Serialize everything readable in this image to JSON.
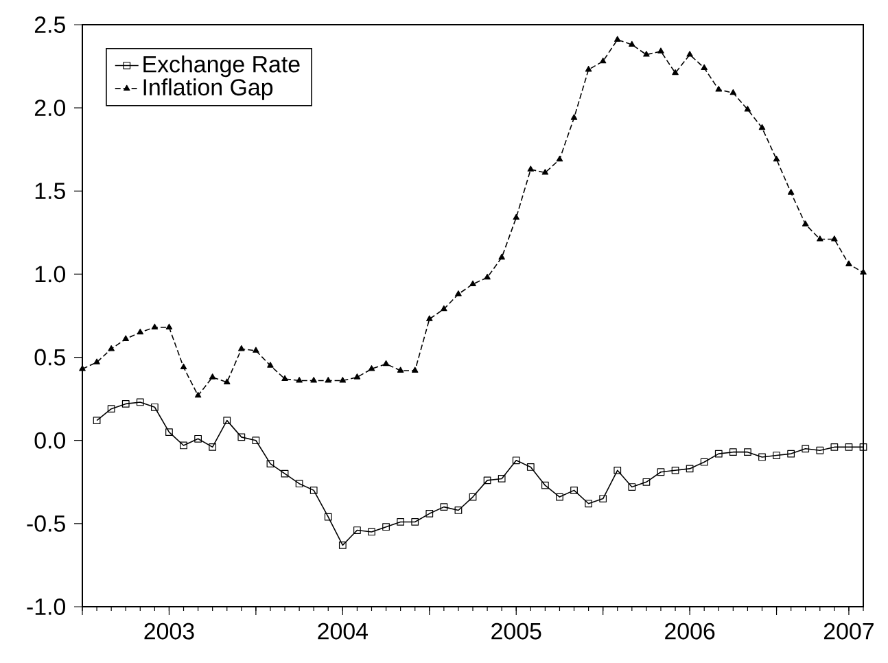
{
  "chart_data": {
    "type": "line",
    "x": [
      "2003-01",
      "2003-02",
      "2003-03",
      "2003-04",
      "2003-05",
      "2003-06",
      "2003-07",
      "2003-08",
      "2003-09",
      "2003-10",
      "2003-11",
      "2003-12",
      "2004-01",
      "2004-02",
      "2004-03",
      "2004-04",
      "2004-05",
      "2004-06",
      "2004-07",
      "2004-08",
      "2004-09",
      "2004-10",
      "2004-11",
      "2004-12",
      "2005-01",
      "2005-02",
      "2005-03",
      "2005-04",
      "2005-05",
      "2005-06",
      "2005-07",
      "2005-08",
      "2005-09",
      "2005-10",
      "2005-11",
      "2005-12",
      "2006-01",
      "2006-02",
      "2006-03",
      "2006-04",
      "2006-05",
      "2006-06",
      "2006-07",
      "2006-08",
      "2006-09",
      "2006-10",
      "2006-11",
      "2006-12",
      "2007-01",
      "2007-02",
      "2007-03",
      "2007-04",
      "2007-05",
      "2007-06",
      "2007-07"
    ],
    "series": [
      {
        "name": "Exchange Rate",
        "color": "#000000",
        "marker": "square",
        "line_style": "solid",
        "values": [
          null,
          0.12,
          0.19,
          0.22,
          0.23,
          0.2,
          0.05,
          -0.03,
          0.01,
          -0.04,
          0.12,
          0.02,
          0.0,
          -0.14,
          -0.2,
          -0.26,
          -0.3,
          -0.46,
          -0.63,
          -0.54,
          -0.55,
          -0.52,
          -0.49,
          -0.49,
          -0.44,
          -0.4,
          -0.42,
          -0.34,
          -0.24,
          -0.23,
          -0.12,
          -0.16,
          -0.27,
          -0.34,
          -0.3,
          -0.38,
          -0.35,
          -0.18,
          -0.28,
          -0.25,
          -0.19,
          -0.18,
          -0.17,
          -0.13,
          -0.08,
          -0.07,
          -0.07,
          -0.1,
          -0.09,
          -0.08,
          -0.05,
          -0.06,
          -0.04,
          -0.04,
          -0.04
        ]
      },
      {
        "name": "Inflation Gap",
        "color": "#000000",
        "marker": "triangle",
        "line_style": "dashed",
        "values": [
          0.43,
          0.47,
          0.55,
          0.61,
          0.65,
          0.68,
          0.68,
          0.44,
          0.27,
          0.38,
          0.35,
          0.55,
          0.54,
          0.45,
          0.37,
          0.36,
          0.36,
          0.36,
          0.36,
          0.38,
          0.43,
          0.46,
          0.42,
          0.42,
          0.73,
          0.79,
          0.88,
          0.94,
          0.98,
          1.1,
          1.34,
          1.63,
          1.61,
          1.69,
          1.94,
          2.23,
          2.28,
          2.41,
          2.38,
          2.32,
          2.34,
          2.21,
          2.32,
          2.24,
          2.11,
          2.09,
          1.99,
          1.88,
          1.69,
          1.49,
          1.3,
          1.21,
          1.21,
          1.06,
          1.01
        ]
      }
    ],
    "xlim": [
      "2003-01",
      "2007-07"
    ],
    "xticks": [
      {
        "value": "2003-01",
        "label": null
      },
      {
        "value": "2003-07",
        "label": "2003"
      },
      {
        "value": "2004-01",
        "label": null
      },
      {
        "value": "2004-07",
        "label": "2004"
      },
      {
        "value": "2005-01",
        "label": null
      },
      {
        "value": "2005-07",
        "label": "2005"
      },
      {
        "value": "2006-01",
        "label": null
      },
      {
        "value": "2006-07",
        "label": "2006"
      },
      {
        "value": "2007-01",
        "label": null
      },
      {
        "value": "2007-06",
        "label": "2007"
      }
    ],
    "ylim": [
      -1.0,
      2.5
    ],
    "yticks": [
      {
        "value": -1.0,
        "label": "-1.0"
      },
      {
        "value": -0.5,
        "label": "-0.5"
      },
      {
        "value": 0,
        "label": "0.0"
      },
      {
        "value": 0.5,
        "label": "0.5"
      },
      {
        "value": 1.0,
        "label": "1.0"
      },
      {
        "value": 1.5,
        "label": "1.5"
      },
      {
        "value": 2.0,
        "label": "2.0"
      },
      {
        "value": 2.5,
        "label": "2.5"
      }
    ],
    "grid": false,
    "legend": "top left"
  }
}
